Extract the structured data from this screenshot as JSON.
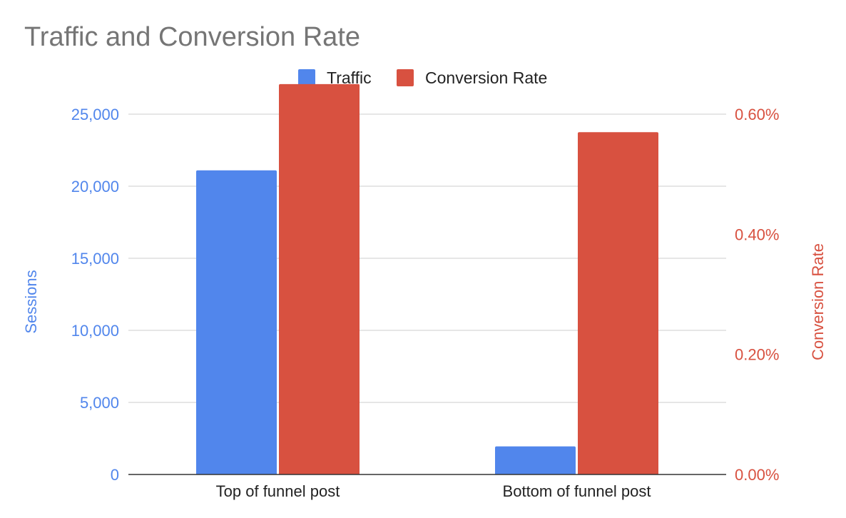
{
  "chart_data": {
    "type": "bar",
    "title": "Traffic and Conversion Rate",
    "categories": [
      "Top of funnel post",
      "Bottom of funnel post"
    ],
    "series": [
      {
        "name": "Traffic",
        "axis": "left",
        "color": "#5186EC",
        "values": [
          21100,
          1950
        ]
      },
      {
        "name": "Conversion Rate",
        "axis": "right",
        "color": "#D85140",
        "values": [
          0.0065,
          0.0057
        ]
      }
    ],
    "left_axis": {
      "label": "Sessions",
      "color": "#5186EC",
      "range": [
        0,
        25000
      ],
      "ticks": [
        0,
        5000,
        10000,
        15000,
        20000,
        25000
      ],
      "tick_labels": [
        "0",
        "5,000",
        "10,000",
        "15,000",
        "20,000",
        "25,000"
      ]
    },
    "right_axis": {
      "label": "Conversion Rate",
      "color": "#D85140",
      "range": [
        0,
        0.006
      ],
      "ticks": [
        0,
        0.002,
        0.004,
        0.006
      ],
      "tick_labels": [
        "0.00%",
        "0.20%",
        "0.40%",
        "0.60%"
      ]
    },
    "legend_position": "top",
    "grid": true
  }
}
